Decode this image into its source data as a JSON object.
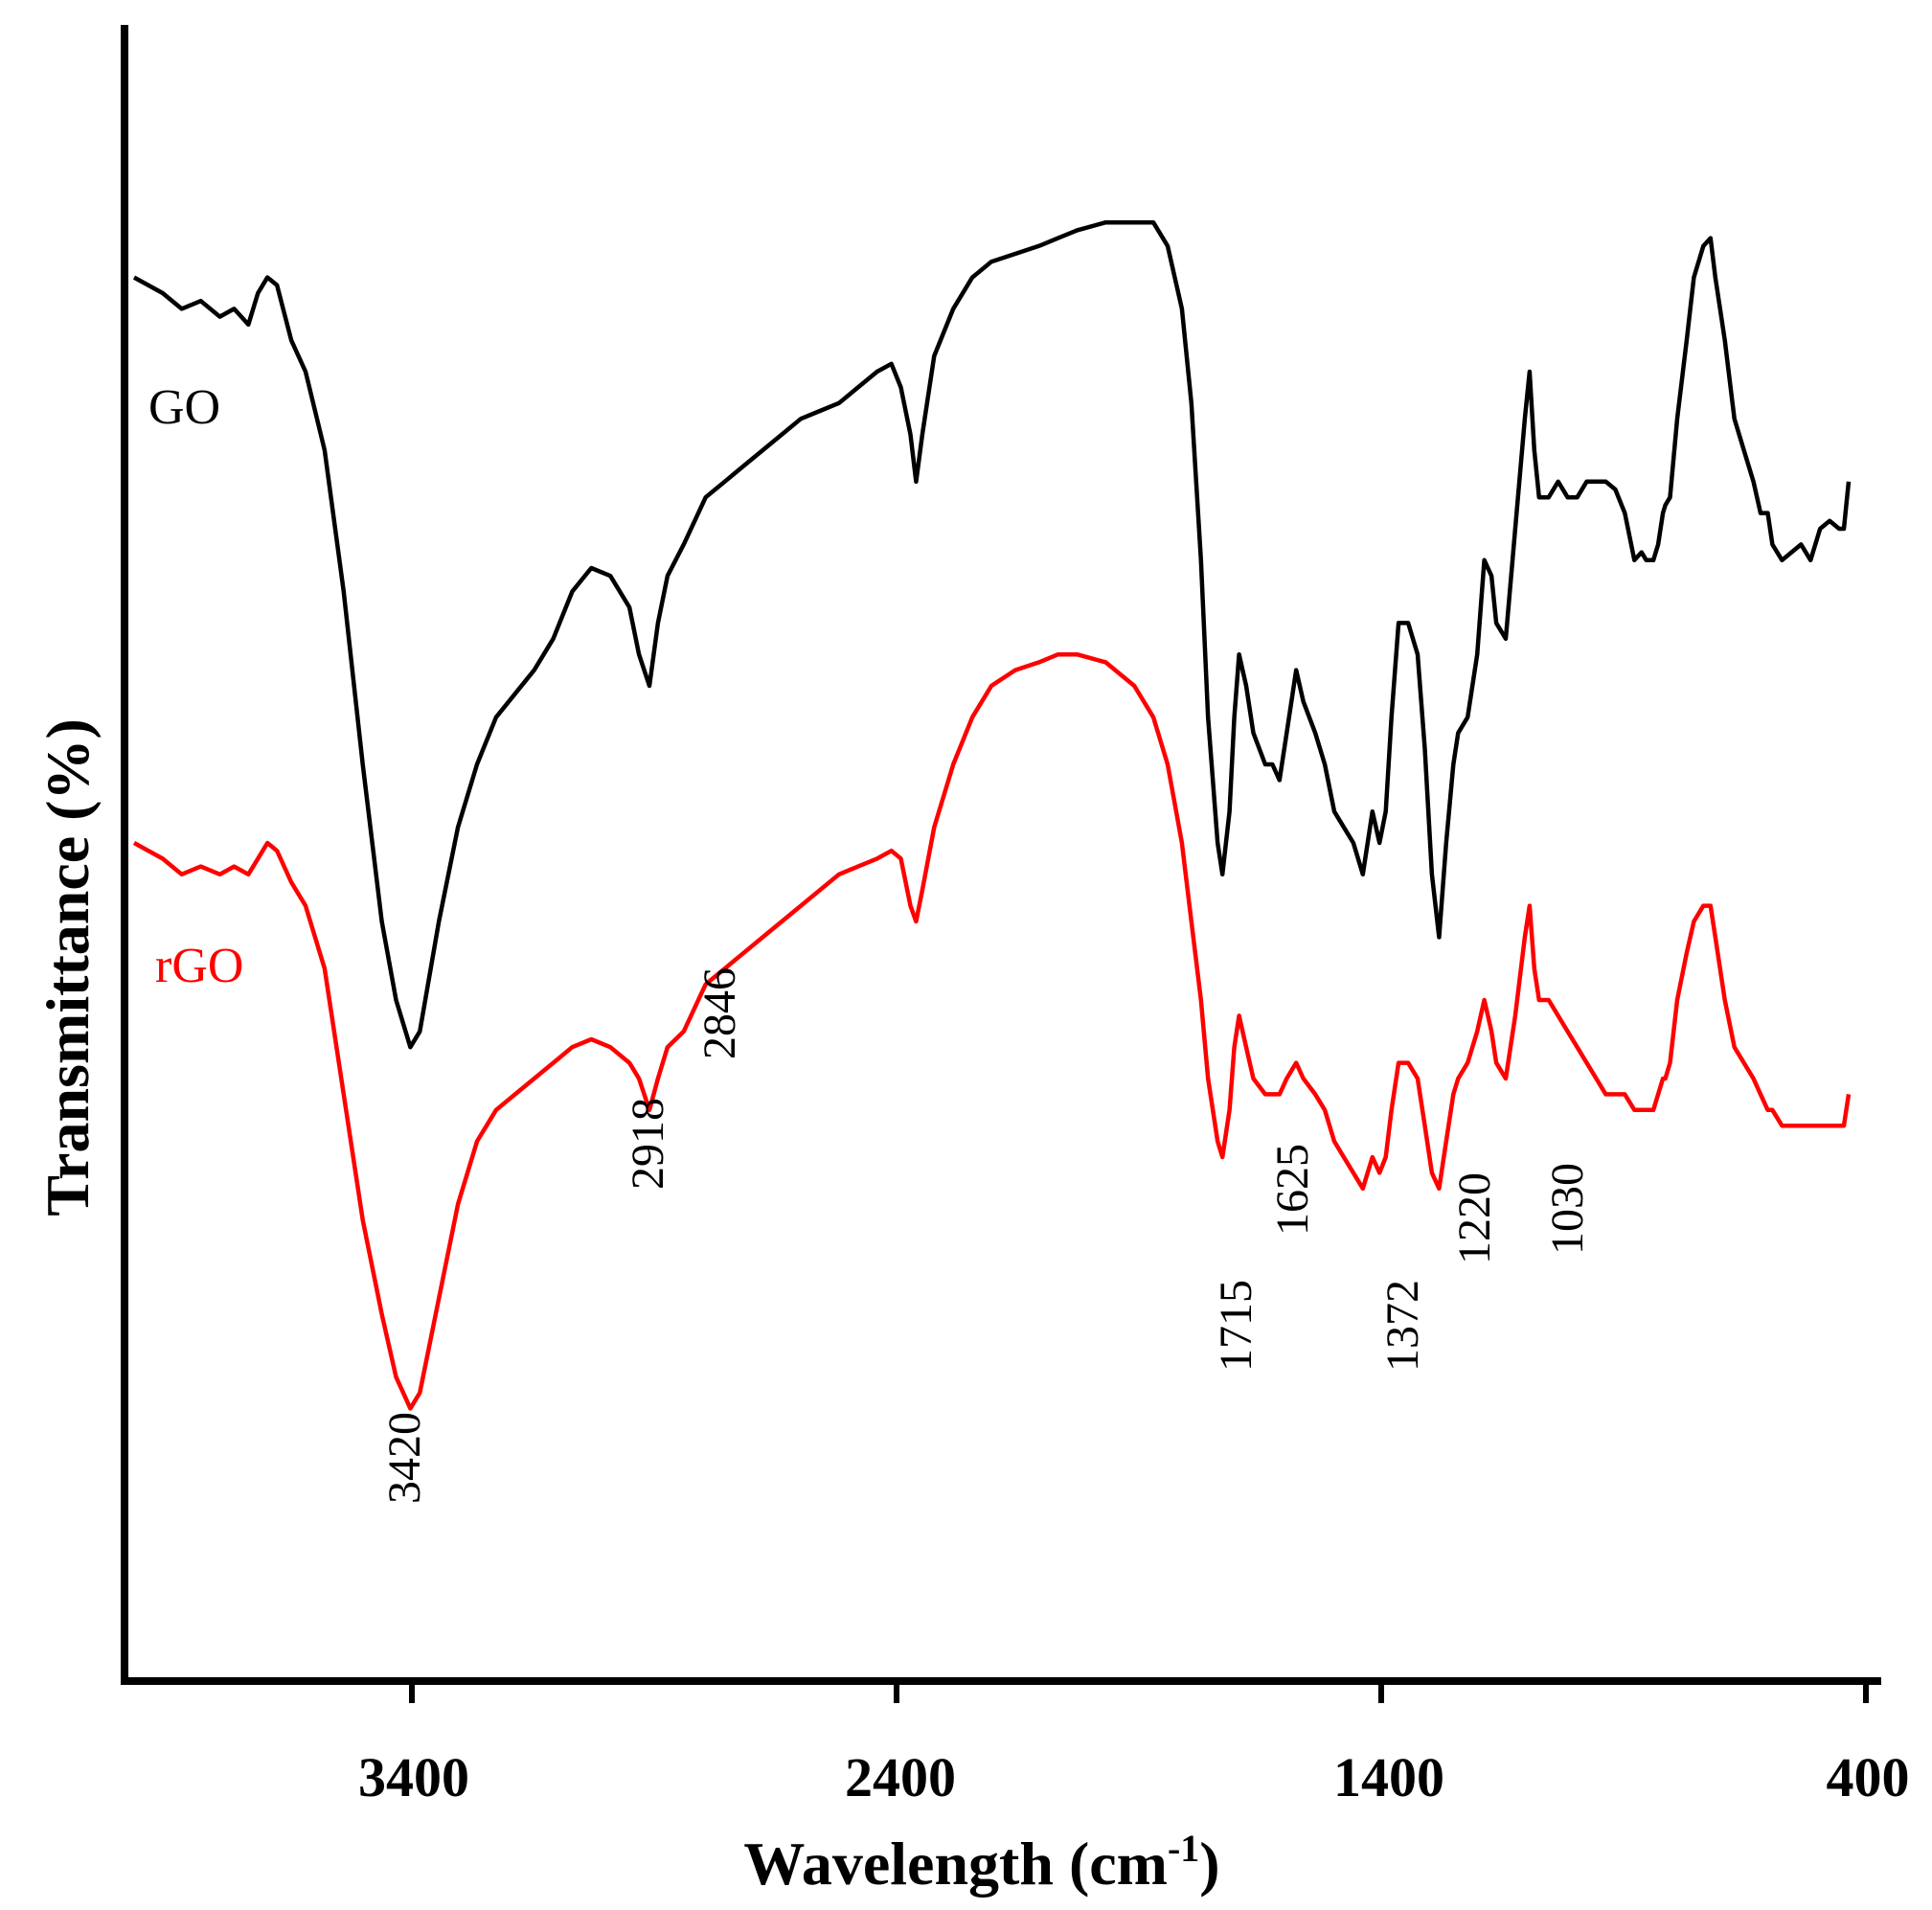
{
  "chart_data": {
    "type": "line",
    "title": "",
    "xlabel": "Wavelength (cm",
    "xlabel_sup": "-1",
    "xlabel_end": ")",
    "ylabel": "Transmittance  (%)",
    "xlim": [
      4000,
      400
    ],
    "x_ticks": [
      3400,
      2400,
      1400,
      400
    ],
    "x_tick_labels": [
      "3400",
      "2400",
      "1400",
      "400"
    ],
    "ylim": [
      0,
      100
    ],
    "grid": false,
    "series": [
      {
        "name": "GO",
        "color": "#000000",
        "points": [
          [
            4000,
            86
          ],
          [
            3940,
            85
          ],
          [
            3900,
            84
          ],
          [
            3860,
            84.5
          ],
          [
            3820,
            83.5
          ],
          [
            3790,
            84
          ],
          [
            3760,
            83
          ],
          [
            3740,
            85
          ],
          [
            3720,
            86
          ],
          [
            3700,
            85.5
          ],
          [
            3670,
            82
          ],
          [
            3640,
            80
          ],
          [
            3600,
            75
          ],
          [
            3560,
            66
          ],
          [
            3520,
            55
          ],
          [
            3480,
            45
          ],
          [
            3450,
            40
          ],
          [
            3420,
            37
          ],
          [
            3400,
            38
          ],
          [
            3360,
            45
          ],
          [
            3320,
            51
          ],
          [
            3280,
            55
          ],
          [
            3240,
            58
          ],
          [
            3200,
            59.5
          ],
          [
            3160,
            61
          ],
          [
            3120,
            63
          ],
          [
            3080,
            66
          ],
          [
            3040,
            67.5
          ],
          [
            3000,
            67
          ],
          [
            2960,
            65
          ],
          [
            2940,
            62
          ],
          [
            2918,
            60
          ],
          [
            2900,
            64
          ],
          [
            2880,
            67
          ],
          [
            2846,
            69
          ],
          [
            2800,
            72
          ],
          [
            2760,
            73
          ],
          [
            2720,
            74
          ],
          [
            2680,
            75
          ],
          [
            2640,
            76
          ],
          [
            2600,
            77
          ],
          [
            2560,
            77.5
          ],
          [
            2520,
            78
          ],
          [
            2480,
            79
          ],
          [
            2440,
            80
          ],
          [
            2410,
            80.5
          ],
          [
            2390,
            79
          ],
          [
            2370,
            76
          ],
          [
            2358,
            73
          ],
          [
            2345,
            76
          ],
          [
            2320,
            81
          ],
          [
            2280,
            84
          ],
          [
            2240,
            86
          ],
          [
            2200,
            87
          ],
          [
            2150,
            87.5
          ],
          [
            2100,
            88
          ],
          [
            2060,
            88.5
          ],
          [
            2020,
            89
          ],
          [
            1960,
            89.5
          ],
          [
            1900,
            89.5
          ],
          [
            1860,
            89.5
          ],
          [
            1830,
            88
          ],
          [
            1800,
            84
          ],
          [
            1780,
            78
          ],
          [
            1760,
            68
          ],
          [
            1745,
            58
          ],
          [
            1725,
            50
          ],
          [
            1715,
            48
          ],
          [
            1700,
            52
          ],
          [
            1690,
            58
          ],
          [
            1680,
            62
          ],
          [
            1665,
            60
          ],
          [
            1650,
            57
          ],
          [
            1625,
            55
          ],
          [
            1610,
            55
          ],
          [
            1595,
            54
          ],
          [
            1580,
            57
          ],
          [
            1560,
            61
          ],
          [
            1545,
            59
          ],
          [
            1520,
            57
          ],
          [
            1500,
            55
          ],
          [
            1480,
            52
          ],
          [
            1460,
            51
          ],
          [
            1440,
            50
          ],
          [
            1420,
            48
          ],
          [
            1400,
            52
          ],
          [
            1385,
            50
          ],
          [
            1372,
            52
          ],
          [
            1360,
            58
          ],
          [
            1345,
            64
          ],
          [
            1325,
            64
          ],
          [
            1305,
            62
          ],
          [
            1290,
            56
          ],
          [
            1275,
            48
          ],
          [
            1260,
            44
          ],
          [
            1245,
            50
          ],
          [
            1230,
            55
          ],
          [
            1220,
            57
          ],
          [
            1200,
            58
          ],
          [
            1180,
            62
          ],
          [
            1165,
            68
          ],
          [
            1150,
            67
          ],
          [
            1140,
            64
          ],
          [
            1120,
            63
          ],
          [
            1100,
            70
          ],
          [
            1080,
            77
          ],
          [
            1070,
            80
          ],
          [
            1060,
            75
          ],
          [
            1050,
            72
          ],
          [
            1030,
            72
          ],
          [
            1010,
            73
          ],
          [
            990,
            72
          ],
          [
            970,
            72
          ],
          [
            950,
            73
          ],
          [
            930,
            73
          ],
          [
            910,
            73
          ],
          [
            890,
            72.5
          ],
          [
            870,
            71
          ],
          [
            850,
            68
          ],
          [
            835,
            68.5
          ],
          [
            825,
            68
          ],
          [
            815,
            68
          ],
          [
            810,
            68
          ],
          [
            800,
            69
          ],
          [
            790,
            71
          ],
          [
            785,
            71.5
          ],
          [
            775,
            72
          ],
          [
            760,
            77
          ],
          [
            740,
            82
          ],
          [
            725,
            86
          ],
          [
            705,
            88
          ],
          [
            690,
            88.5
          ],
          [
            680,
            86
          ],
          [
            660,
            82
          ],
          [
            640,
            77
          ],
          [
            620,
            75
          ],
          [
            600,
            73
          ],
          [
            585,
            71
          ],
          [
            570,
            71
          ],
          [
            560,
            69
          ],
          [
            540,
            68
          ],
          [
            520,
            68.5
          ],
          [
            500,
            69
          ],
          [
            480,
            68
          ],
          [
            460,
            70
          ],
          [
            440,
            70.5
          ],
          [
            420,
            70
          ],
          [
            410,
            70
          ],
          [
            400,
            73
          ]
        ]
      },
      {
        "name": "rGO",
        "color": "#ff0000",
        "points": [
          [
            4000,
            50
          ],
          [
            3940,
            49
          ],
          [
            3900,
            48
          ],
          [
            3860,
            48.5
          ],
          [
            3820,
            48
          ],
          [
            3790,
            48.5
          ],
          [
            3760,
            48
          ],
          [
            3740,
            49
          ],
          [
            3720,
            50
          ],
          [
            3700,
            49.5
          ],
          [
            3670,
            47.5
          ],
          [
            3640,
            46
          ],
          [
            3600,
            42
          ],
          [
            3560,
            34
          ],
          [
            3520,
            26
          ],
          [
            3480,
            20
          ],
          [
            3450,
            16
          ],
          [
            3420,
            14
          ],
          [
            3400,
            15
          ],
          [
            3360,
            21
          ],
          [
            3320,
            27
          ],
          [
            3280,
            31
          ],
          [
            3240,
            33
          ],
          [
            3200,
            34
          ],
          [
            3160,
            35
          ],
          [
            3120,
            36
          ],
          [
            3080,
            37
          ],
          [
            3040,
            37.5
          ],
          [
            3000,
            37
          ],
          [
            2960,
            36
          ],
          [
            2940,
            35
          ],
          [
            2918,
            33
          ],
          [
            2900,
            35
          ],
          [
            2880,
            37
          ],
          [
            2846,
            38
          ],
          [
            2800,
            41
          ],
          [
            2760,
            42
          ],
          [
            2720,
            43
          ],
          [
            2680,
            44
          ],
          [
            2640,
            45
          ],
          [
            2600,
            46
          ],
          [
            2560,
            47
          ],
          [
            2520,
            48
          ],
          [
            2480,
            48.5
          ],
          [
            2440,
            49
          ],
          [
            2410,
            49.5
          ],
          [
            2390,
            49
          ],
          [
            2370,
            46
          ],
          [
            2358,
            45
          ],
          [
            2345,
            47
          ],
          [
            2320,
            51
          ],
          [
            2280,
            55
          ],
          [
            2240,
            58
          ],
          [
            2200,
            60
          ],
          [
            2150,
            61
          ],
          [
            2100,
            61.5
          ],
          [
            2060,
            62
          ],
          [
            2020,
            62
          ],
          [
            1960,
            61.5
          ],
          [
            1900,
            60
          ],
          [
            1860,
            58
          ],
          [
            1830,
            55
          ],
          [
            1800,
            50
          ],
          [
            1780,
            45
          ],
          [
            1760,
            40
          ],
          [
            1745,
            35
          ],
          [
            1725,
            31
          ],
          [
            1715,
            30
          ],
          [
            1700,
            33
          ],
          [
            1690,
            37
          ],
          [
            1680,
            39
          ],
          [
            1665,
            37
          ],
          [
            1650,
            35
          ],
          [
            1625,
            34
          ],
          [
            1610,
            34
          ],
          [
            1595,
            34
          ],
          [
            1580,
            35
          ],
          [
            1560,
            36
          ],
          [
            1545,
            35
          ],
          [
            1520,
            34
          ],
          [
            1500,
            33
          ],
          [
            1480,
            31
          ],
          [
            1460,
            30
          ],
          [
            1440,
            29
          ],
          [
            1420,
            28
          ],
          [
            1400,
            30
          ],
          [
            1385,
            29
          ],
          [
            1372,
            30
          ],
          [
            1360,
            33
          ],
          [
            1345,
            36
          ],
          [
            1325,
            36
          ],
          [
            1305,
            35
          ],
          [
            1290,
            32
          ],
          [
            1275,
            29
          ],
          [
            1260,
            28
          ],
          [
            1245,
            31
          ],
          [
            1230,
            34
          ],
          [
            1220,
            35
          ],
          [
            1200,
            36
          ],
          [
            1180,
            38
          ],
          [
            1165,
            40
          ],
          [
            1150,
            38
          ],
          [
            1140,
            36
          ],
          [
            1120,
            35
          ],
          [
            1100,
            39
          ],
          [
            1080,
            44
          ],
          [
            1070,
            46
          ],
          [
            1060,
            42
          ],
          [
            1050,
            40
          ],
          [
            1030,
            40
          ],
          [
            1010,
            39
          ],
          [
            990,
            38
          ],
          [
            970,
            37
          ],
          [
            950,
            36
          ],
          [
            930,
            35
          ],
          [
            910,
            34
          ],
          [
            890,
            34
          ],
          [
            870,
            34
          ],
          [
            850,
            33
          ],
          [
            835,
            33
          ],
          [
            825,
            33
          ],
          [
            815,
            33
          ],
          [
            810,
            33
          ],
          [
            800,
            34
          ],
          [
            790,
            35
          ],
          [
            785,
            35
          ],
          [
            775,
            36
          ],
          [
            760,
            40
          ],
          [
            740,
            43
          ],
          [
            725,
            45
          ],
          [
            705,
            46
          ],
          [
            690,
            46
          ],
          [
            680,
            44
          ],
          [
            660,
            40
          ],
          [
            640,
            37
          ],
          [
            620,
            36
          ],
          [
            600,
            35
          ],
          [
            585,
            34
          ],
          [
            570,
            33
          ],
          [
            560,
            33
          ],
          [
            540,
            32
          ],
          [
            520,
            32
          ],
          [
            500,
            32
          ],
          [
            480,
            32
          ],
          [
            460,
            32
          ],
          [
            440,
            32
          ],
          [
            420,
            32
          ],
          [
            410,
            32
          ],
          [
            400,
            34
          ]
        ]
      }
    ],
    "annotations": [
      "3420",
      "2918",
      "2846",
      "1715",
      "1625",
      "1372",
      "1220",
      "1030"
    ]
  }
}
